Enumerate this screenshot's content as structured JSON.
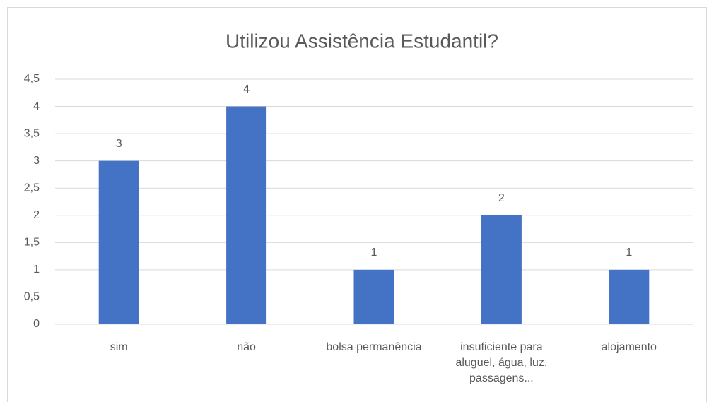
{
  "chart_data": {
    "type": "bar",
    "title": "Utilizou Assistência Estudantil?",
    "categories": [
      "sim",
      "não",
      "bolsa permanência",
      "insuficiente para aluguel, água, luz, passagens...",
      "alojamento"
    ],
    "values": [
      3,
      4,
      1,
      2,
      1
    ],
    "color": "#4472c4",
    "ylim": [
      0,
      4.5
    ],
    "yticks": [
      0,
      {
        "value": 0.5,
        "label": "0,5"
      },
      1,
      {
        "value": 1.5,
        "label": "1,5"
      },
      2,
      {
        "value": 2.5,
        "label": "2,5"
      },
      3,
      {
        "value": 3.5,
        "label": "3,5"
      },
      4,
      {
        "value": 4.5,
        "label": "4,5"
      }
    ],
    "grid": true
  }
}
